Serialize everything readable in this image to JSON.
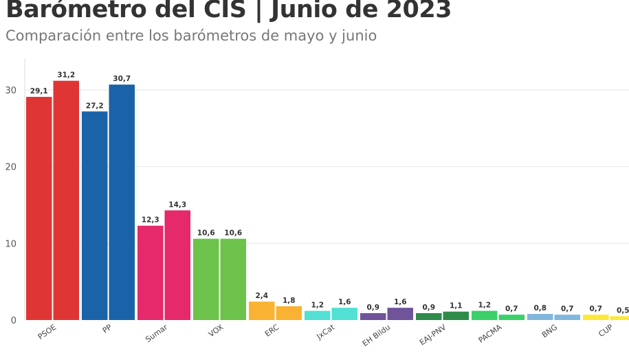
{
  "title": "Barómetro del CIS | Junio de 2023",
  "subtitle": "Comparación entre los barómetros de mayo y junio",
  "chart_data": {
    "type": "bar",
    "title": "Barómetro del CIS | Junio de 2023",
    "subtitle": "Comparación entre los barómetros de mayo y junio",
    "xlabel": "",
    "ylabel": "",
    "ylim": [
      0,
      34
    ],
    "yticks": [
      0,
      10,
      20,
      30
    ],
    "grid": true,
    "categories": [
      "PSOE",
      "PP",
      "Sumar",
      "VOX",
      "ERC",
      "JxCat",
      "EH Bildu",
      "EAJ-PNV",
      "PACMA",
      "BNG",
      "CUP"
    ],
    "colors": [
      "#e03535",
      "#1b63a8",
      "#e5296a",
      "#6cc24a",
      "#f9b232",
      "#52e0d4",
      "#6f5499",
      "#2e8b4a",
      "#3ccf6a",
      "#82b6dc",
      "#fbe83a"
    ],
    "series": [
      {
        "values": [
          29.1,
          27.2,
          12.3,
          10.6,
          2.4,
          1.2,
          0.9,
          0.9,
          1.2,
          0.8,
          0.7
        ]
      },
      {
        "values": [
          31.2,
          30.7,
          14.3,
          10.6,
          1.8,
          1.6,
          1.6,
          1.1,
          0.7,
          0.7,
          0.5
        ]
      }
    ]
  }
}
